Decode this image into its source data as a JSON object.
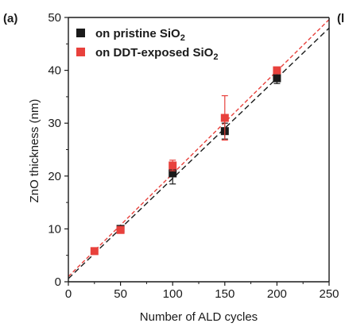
{
  "panel": {
    "label": "(a)",
    "next_panel_fragment": "(l"
  },
  "chart_data": {
    "type": "scatter",
    "xlabel": "Number of ALD cycles",
    "ylabel": "ZnO thickness (nm)",
    "xlim": [
      0,
      250
    ],
    "ylim": [
      0,
      50
    ],
    "xticks": [
      0,
      50,
      100,
      150,
      200,
      250
    ],
    "yticks": [
      0,
      10,
      20,
      30,
      40,
      50
    ],
    "xtick_labels": [
      "0",
      "50",
      "100",
      "150",
      "200",
      "250"
    ],
    "ytick_labels": [
      "0",
      "10",
      "20",
      "30",
      "40",
      "50"
    ],
    "grid": false,
    "legend_position": "top-left",
    "series": [
      {
        "name": "on pristine SiO",
        "name_subscript": "2",
        "color": "#1a1a1a",
        "x": [
          50,
          100,
          150,
          200
        ],
        "y": [
          10,
          20.5,
          28.5,
          38.5
        ],
        "err": [
          0.5,
          2.0,
          1.5,
          1.0
        ],
        "fit": {
          "x": [
            0,
            250
          ],
          "y": [
            0.6,
            48.0
          ]
        }
      },
      {
        "name": "on DDT-exposed SiO",
        "name_subscript": "2",
        "color": "#e8413c",
        "x": [
          25,
          50,
          100,
          150,
          200
        ],
        "y": [
          5.8,
          9.8,
          22,
          31,
          40
        ],
        "err": [
          0.4,
          0.5,
          1.0,
          4.2,
          0.5
        ],
        "fit": {
          "x": [
            0,
            250
          ],
          "y": [
            1.0,
            49.6
          ]
        }
      }
    ]
  }
}
